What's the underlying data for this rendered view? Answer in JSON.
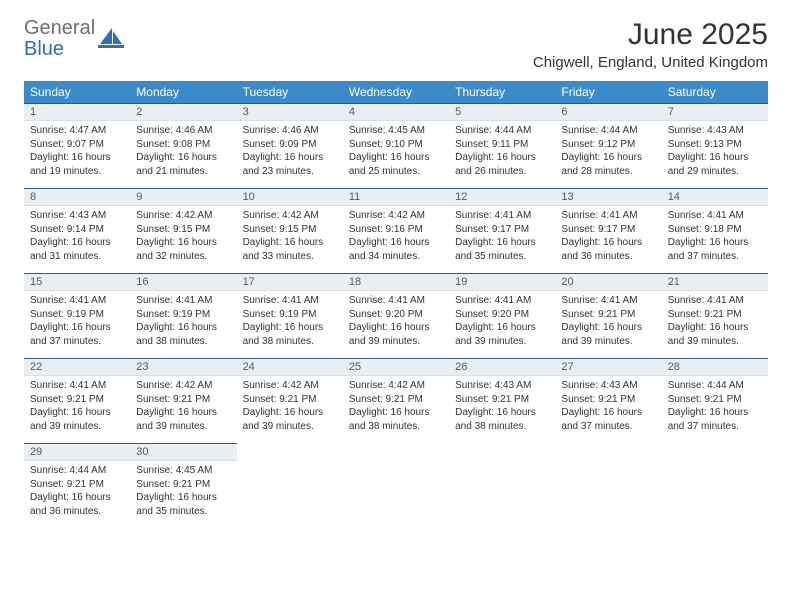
{
  "logo": {
    "line1": "General",
    "line2": "Blue"
  },
  "title": "June 2025",
  "subtitle": "Chigwell, England, United Kingdom",
  "colors": {
    "header_bg": "#3b8bca",
    "header_text": "#ffffff",
    "daynum_bg": "#e9eef3",
    "day_border": "#2b5e8a",
    "text": "#333333",
    "logo_gray": "#6f6f6f",
    "logo_blue": "#2f6fb3"
  },
  "weekdays": [
    "Sunday",
    "Monday",
    "Tuesday",
    "Wednesday",
    "Thursday",
    "Friday",
    "Saturday"
  ],
  "weeks": [
    [
      {
        "n": "1",
        "sr": "4:47 AM",
        "ss": "9:07 PM",
        "dh": "16",
        "dm": "19"
      },
      {
        "n": "2",
        "sr": "4:46 AM",
        "ss": "9:08 PM",
        "dh": "16",
        "dm": "21"
      },
      {
        "n": "3",
        "sr": "4:46 AM",
        "ss": "9:09 PM",
        "dh": "16",
        "dm": "23"
      },
      {
        "n": "4",
        "sr": "4:45 AM",
        "ss": "9:10 PM",
        "dh": "16",
        "dm": "25"
      },
      {
        "n": "5",
        "sr": "4:44 AM",
        "ss": "9:11 PM",
        "dh": "16",
        "dm": "26"
      },
      {
        "n": "6",
        "sr": "4:44 AM",
        "ss": "9:12 PM",
        "dh": "16",
        "dm": "28"
      },
      {
        "n": "7",
        "sr": "4:43 AM",
        "ss": "9:13 PM",
        "dh": "16",
        "dm": "29"
      }
    ],
    [
      {
        "n": "8",
        "sr": "4:43 AM",
        "ss": "9:14 PM",
        "dh": "16",
        "dm": "31"
      },
      {
        "n": "9",
        "sr": "4:42 AM",
        "ss": "9:15 PM",
        "dh": "16",
        "dm": "32"
      },
      {
        "n": "10",
        "sr": "4:42 AM",
        "ss": "9:15 PM",
        "dh": "16",
        "dm": "33"
      },
      {
        "n": "11",
        "sr": "4:42 AM",
        "ss": "9:16 PM",
        "dh": "16",
        "dm": "34"
      },
      {
        "n": "12",
        "sr": "4:41 AM",
        "ss": "9:17 PM",
        "dh": "16",
        "dm": "35"
      },
      {
        "n": "13",
        "sr": "4:41 AM",
        "ss": "9:17 PM",
        "dh": "16",
        "dm": "36"
      },
      {
        "n": "14",
        "sr": "4:41 AM",
        "ss": "9:18 PM",
        "dh": "16",
        "dm": "37"
      }
    ],
    [
      {
        "n": "15",
        "sr": "4:41 AM",
        "ss": "9:19 PM",
        "dh": "16",
        "dm": "37"
      },
      {
        "n": "16",
        "sr": "4:41 AM",
        "ss": "9:19 PM",
        "dh": "16",
        "dm": "38"
      },
      {
        "n": "17",
        "sr": "4:41 AM",
        "ss": "9:19 PM",
        "dh": "16",
        "dm": "38"
      },
      {
        "n": "18",
        "sr": "4:41 AM",
        "ss": "9:20 PM",
        "dh": "16",
        "dm": "39"
      },
      {
        "n": "19",
        "sr": "4:41 AM",
        "ss": "9:20 PM",
        "dh": "16",
        "dm": "39"
      },
      {
        "n": "20",
        "sr": "4:41 AM",
        "ss": "9:21 PM",
        "dh": "16",
        "dm": "39"
      },
      {
        "n": "21",
        "sr": "4:41 AM",
        "ss": "9:21 PM",
        "dh": "16",
        "dm": "39"
      }
    ],
    [
      {
        "n": "22",
        "sr": "4:41 AM",
        "ss": "9:21 PM",
        "dh": "16",
        "dm": "39"
      },
      {
        "n": "23",
        "sr": "4:42 AM",
        "ss": "9:21 PM",
        "dh": "16",
        "dm": "39"
      },
      {
        "n": "24",
        "sr": "4:42 AM",
        "ss": "9:21 PM",
        "dh": "16",
        "dm": "39"
      },
      {
        "n": "25",
        "sr": "4:42 AM",
        "ss": "9:21 PM",
        "dh": "16",
        "dm": "38"
      },
      {
        "n": "26",
        "sr": "4:43 AM",
        "ss": "9:21 PM",
        "dh": "16",
        "dm": "38"
      },
      {
        "n": "27",
        "sr": "4:43 AM",
        "ss": "9:21 PM",
        "dh": "16",
        "dm": "37"
      },
      {
        "n": "28",
        "sr": "4:44 AM",
        "ss": "9:21 PM",
        "dh": "16",
        "dm": "37"
      }
    ],
    [
      {
        "n": "29",
        "sr": "4:44 AM",
        "ss": "9:21 PM",
        "dh": "16",
        "dm": "36"
      },
      {
        "n": "30",
        "sr": "4:45 AM",
        "ss": "9:21 PM",
        "dh": "16",
        "dm": "35"
      },
      null,
      null,
      null,
      null,
      null
    ]
  ],
  "labels": {
    "sunrise": "Sunrise:",
    "sunset": "Sunset:",
    "daylight": "Daylight:",
    "hours": "hours",
    "and": "and",
    "minutes": "minutes."
  }
}
